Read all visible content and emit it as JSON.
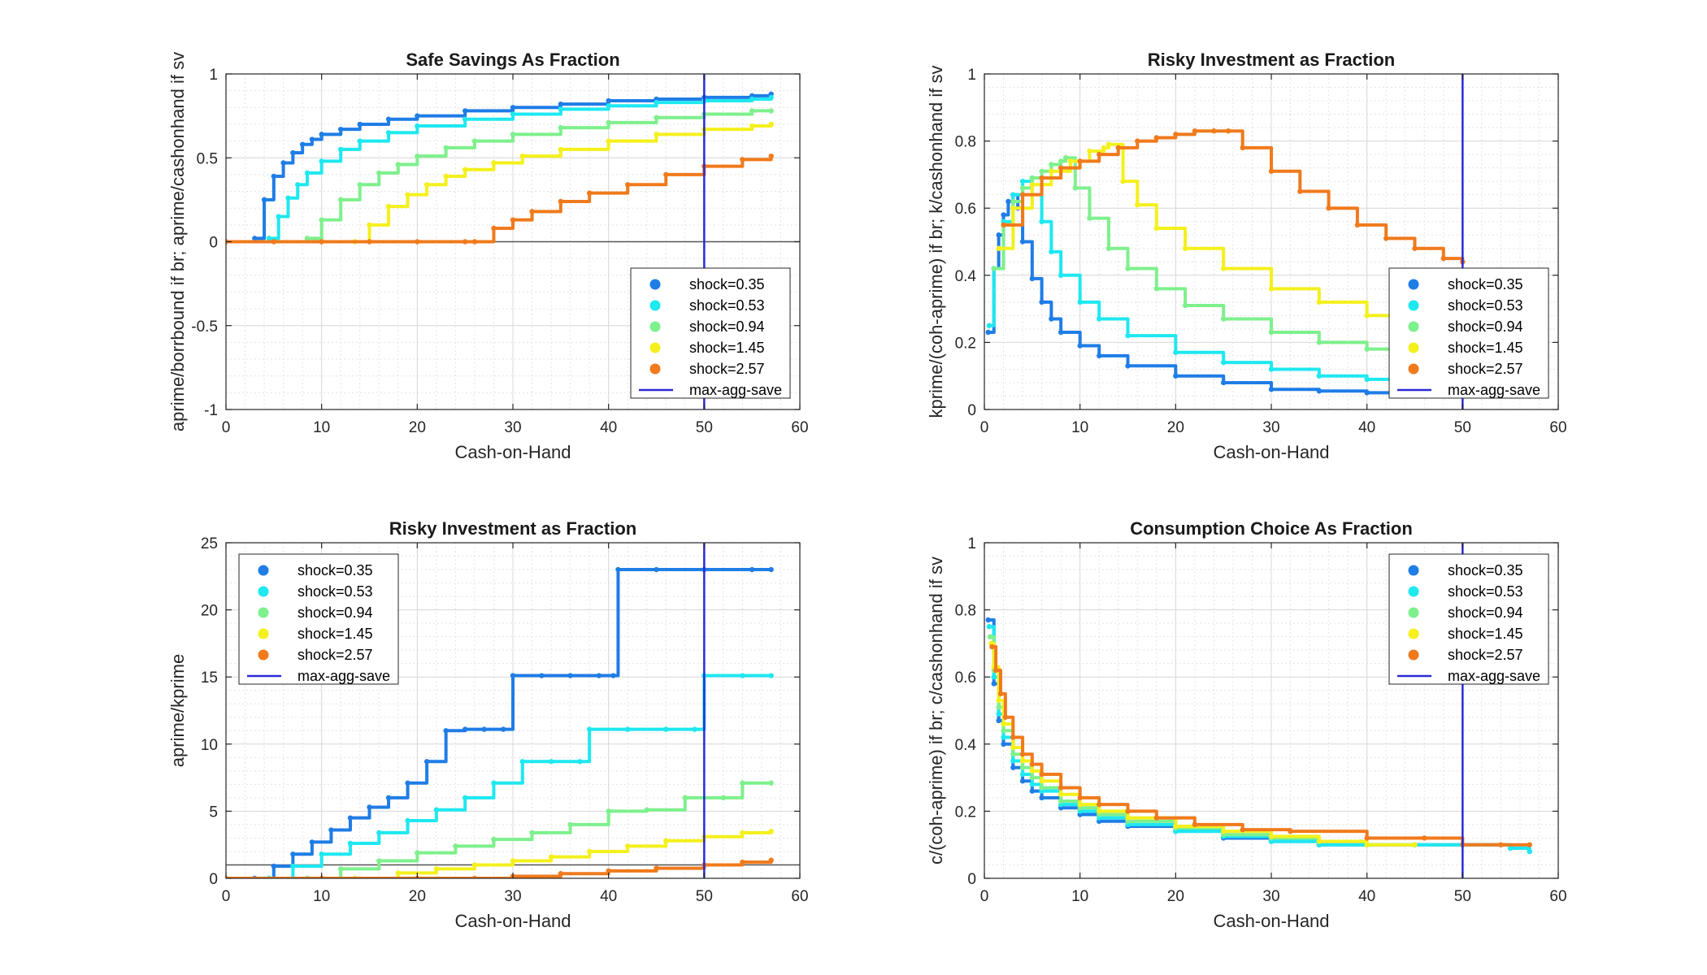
{
  "figure": {
    "background": "#ffffff"
  },
  "colors": {
    "shock_0_35": "#1f7de6",
    "shock_0_53": "#1ee8f0",
    "shock_0_94": "#7ef08c",
    "shock_1_45": "#f4f01c",
    "shock_2_57": "#f07a1c",
    "max_agg_save": "#2a2ad6",
    "zero_line": "#555555"
  },
  "chart_data": [
    {
      "type": "scatter",
      "title": "Safe Savings As Fraction",
      "xlabel": "Cash-on-Hand",
      "ylabel": "aprime/borrbound if br; aprime/cashonhand if sv",
      "xlim": [
        0,
        60
      ],
      "ylim": [
        -1,
        1
      ],
      "xticks": [
        0,
        10,
        20,
        30,
        40,
        50,
        60
      ],
      "yticks": [
        -1,
        -0.5,
        0,
        0.5,
        1
      ],
      "ytick_labels": [
        "-1",
        "-0.5",
        "0",
        "0.5",
        "1"
      ],
      "grid": true,
      "legend_position": "lower-right",
      "hline": 0,
      "vline": {
        "name": "max-agg-save",
        "x": 50
      },
      "series": [
        {
          "name": "shock=0.35",
          "color_key": "shock_0_35",
          "x": [
            3,
            4,
            5,
            6,
            7,
            8,
            9,
            10,
            12,
            14,
            17,
            20,
            25,
            30,
            35,
            40,
            45,
            50,
            55,
            57
          ],
          "y": [
            0.02,
            0.25,
            0.39,
            0.47,
            0.53,
            0.58,
            0.61,
            0.64,
            0.67,
            0.7,
            0.73,
            0.75,
            0.78,
            0.8,
            0.82,
            0.84,
            0.85,
            0.86,
            0.87,
            0.88
          ]
        },
        {
          "name": "shock=0.53",
          "color_key": "shock_0_53",
          "x": [
            4.5,
            5.5,
            6.5,
            7.5,
            8.5,
            10,
            12,
            14,
            17,
            20,
            25,
            30,
            35,
            40,
            45,
            50,
            55,
            57
          ],
          "y": [
            0.02,
            0.15,
            0.26,
            0.34,
            0.41,
            0.48,
            0.55,
            0.6,
            0.65,
            0.69,
            0.73,
            0.76,
            0.79,
            0.81,
            0.83,
            0.84,
            0.85,
            0.86
          ]
        },
        {
          "name": "shock=0.94",
          "color_key": "shock_0_94",
          "x": [
            8.5,
            10,
            12,
            14,
            16,
            18,
            20,
            23,
            26,
            30,
            35,
            40,
            45,
            50,
            55,
            57
          ],
          "y": [
            0.02,
            0.13,
            0.25,
            0.34,
            0.41,
            0.46,
            0.51,
            0.56,
            0.6,
            0.64,
            0.68,
            0.71,
            0.74,
            0.76,
            0.78,
            0.78
          ]
        },
        {
          "name": "shock=1.45",
          "color_key": "shock_1_45",
          "x": [
            13.5,
            15,
            17,
            19,
            21,
            23,
            25,
            28,
            31,
            35,
            40,
            45,
            50,
            55,
            57
          ],
          "y": [
            0.0,
            0.1,
            0.21,
            0.28,
            0.34,
            0.39,
            0.43,
            0.47,
            0.51,
            0.55,
            0.6,
            0.64,
            0.67,
            0.69,
            0.7
          ]
        },
        {
          "name": "shock=2.57",
          "color_key": "shock_2_57",
          "x": [
            0,
            5,
            10,
            15,
            20,
            25,
            26,
            28,
            30,
            32,
            35,
            38,
            42,
            46,
            50,
            54,
            57
          ],
          "y": [
            0,
            0,
            0,
            0,
            0,
            0,
            0.0,
            0.08,
            0.13,
            0.18,
            0.24,
            0.29,
            0.34,
            0.4,
            0.45,
            0.49,
            0.51
          ]
        }
      ]
    },
    {
      "type": "scatter",
      "title": "Risky Investment as Fraction",
      "xlabel": "Cash-on-Hand",
      "ylabel": "kprime/(coh-aprime) if br; k/cashonhand if sv",
      "xlim": [
        0,
        60
      ],
      "ylim": [
        0,
        1
      ],
      "xticks": [
        0,
        10,
        20,
        30,
        40,
        50,
        60
      ],
      "yticks": [
        0,
        0.2,
        0.4,
        0.6,
        0.8,
        1
      ],
      "ytick_labels": [
        "0",
        "0.2",
        "0.4",
        "0.6",
        "0.8",
        "1"
      ],
      "grid": true,
      "legend_position": "lower-right",
      "vline": {
        "name": "max-agg-save",
        "x": 50
      },
      "series": [
        {
          "name": "shock=0.35",
          "color_key": "shock_0_35",
          "x": [
            0.4,
            1,
            1.5,
            2,
            2.5,
            3,
            3.5,
            4,
            5,
            6,
            7,
            8,
            10,
            12,
            15,
            20,
            25,
            30,
            35,
            40,
            45,
            50,
            55,
            57
          ],
          "y": [
            0.23,
            0.42,
            0.52,
            0.58,
            0.62,
            0.64,
            0.6,
            0.5,
            0.39,
            0.32,
            0.27,
            0.23,
            0.19,
            0.16,
            0.13,
            0.1,
            0.08,
            0.06,
            0.055,
            0.05,
            0.045,
            0.04,
            0.04,
            0.04
          ]
        },
        {
          "name": "shock=0.53",
          "color_key": "shock_0_53",
          "x": [
            0.5,
            1,
            2,
            3,
            4,
            5,
            6,
            7,
            8,
            10,
            12,
            15,
            20,
            25,
            30,
            35,
            40,
            45,
            50,
            55,
            57
          ],
          "y": [
            0.25,
            0.42,
            0.56,
            0.64,
            0.68,
            0.69,
            0.56,
            0.47,
            0.4,
            0.32,
            0.27,
            0.22,
            0.17,
            0.14,
            0.12,
            0.1,
            0.09,
            0.08,
            0.07,
            0.065,
            0.06
          ]
        },
        {
          "name": "shock=0.94",
          "color_key": "shock_0_94",
          "x": [
            1,
            2,
            3,
            4,
            5,
            6,
            7,
            8,
            8.5,
            9.5,
            11,
            13,
            15,
            18,
            21,
            25,
            30,
            35,
            40,
            45,
            50,
            55,
            57
          ],
          "y": [
            0.42,
            0.55,
            0.62,
            0.66,
            0.69,
            0.71,
            0.73,
            0.74,
            0.75,
            0.66,
            0.57,
            0.48,
            0.42,
            0.36,
            0.31,
            0.27,
            0.23,
            0.2,
            0.18,
            0.16,
            0.15,
            0.14,
            0.13
          ]
        },
        {
          "name": "shock=1.45",
          "color_key": "shock_1_45",
          "x": [
            1.5,
            3,
            5,
            7,
            9,
            11,
            12.5,
            13,
            14.5,
            16,
            18,
            21,
            25,
            30,
            35,
            40,
            45,
            50,
            55,
            57
          ],
          "y": [
            0.48,
            0.6,
            0.67,
            0.71,
            0.74,
            0.77,
            0.78,
            0.79,
            0.68,
            0.61,
            0.54,
            0.48,
            0.42,
            0.36,
            0.32,
            0.28,
            0.25,
            0.23,
            0.21,
            0.2
          ]
        },
        {
          "name": "shock=2.57",
          "color_key": "shock_2_57",
          "x": [
            2,
            4,
            6,
            8,
            10,
            12,
            14,
            16,
            18,
            20,
            22,
            24,
            25.5,
            27,
            30,
            33,
            36,
            39,
            42,
            45,
            48,
            50
          ],
          "y": [
            0.55,
            0.64,
            0.69,
            0.72,
            0.74,
            0.76,
            0.78,
            0.8,
            0.81,
            0.82,
            0.83,
            0.83,
            0.83,
            0.78,
            0.71,
            0.65,
            0.6,
            0.55,
            0.51,
            0.48,
            0.45,
            0.44
          ]
        }
      ]
    },
    {
      "type": "scatter",
      "title": "Risky Investment as Fraction",
      "xlabel": "Cash-on-Hand",
      "ylabel": "aprime/kprime",
      "xlim": [
        0,
        60
      ],
      "ylim": [
        0,
        25
      ],
      "xticks": [
        0,
        10,
        20,
        30,
        40,
        50,
        60
      ],
      "yticks": [
        0,
        5,
        10,
        15,
        20,
        25
      ],
      "ytick_labels": [
        "0",
        "5",
        "10",
        "15",
        "20",
        "25"
      ],
      "grid": true,
      "legend_position": "upper-left",
      "hline": 1,
      "vline": {
        "name": "max-agg-save",
        "x": 50
      },
      "series": [
        {
          "name": "shock=0.35",
          "color_key": "shock_0_35",
          "x": [
            3,
            5,
            7,
            9,
            11,
            13,
            15,
            17,
            19,
            21,
            23,
            25,
            27,
            29,
            30,
            33,
            36,
            39,
            40.5,
            41,
            45,
            50,
            55,
            57
          ],
          "y": [
            0,
            0.9,
            1.8,
            2.7,
            3.6,
            4.5,
            5.3,
            6.0,
            7.1,
            8.7,
            11.0,
            11.1,
            11.1,
            11.1,
            15.1,
            15.1,
            15.1,
            15.1,
            15.1,
            23,
            23,
            23,
            23,
            23
          ]
        },
        {
          "name": "shock=0.53",
          "color_key": "shock_0_53",
          "x": [
            4.5,
            7,
            10,
            13,
            16,
            19,
            22,
            25,
            28,
            31,
            34,
            37,
            38,
            42,
            46,
            49,
            50,
            54,
            57
          ],
          "y": [
            0,
            0.9,
            1.8,
            2.6,
            3.4,
            4.3,
            5.1,
            6.0,
            7.1,
            8.7,
            8.7,
            8.7,
            11.1,
            11.1,
            11.1,
            11.1,
            15.1,
            15.1,
            15.1
          ]
        },
        {
          "name": "shock=0.94",
          "color_key": "shock_0_94",
          "x": [
            8.5,
            12,
            16,
            20,
            24,
            28,
            32,
            36,
            40,
            44,
            48,
            52,
            54,
            57
          ],
          "y": [
            0,
            0.7,
            1.3,
            1.9,
            2.4,
            2.9,
            3.4,
            4.0,
            5.0,
            5.1,
            6.0,
            6.0,
            7.1,
            7.1
          ]
        },
        {
          "name": "shock=1.45",
          "color_key": "shock_1_45",
          "x": [
            13.5,
            18,
            22,
            26,
            30,
            34,
            38,
            42,
            46,
            50,
            54,
            57
          ],
          "y": [
            0,
            0.4,
            0.7,
            1.0,
            1.3,
            1.6,
            2.0,
            2.4,
            2.8,
            3.1,
            3.4,
            3.5
          ]
        },
        {
          "name": "shock=2.57",
          "color_key": "shock_2_57",
          "x": [
            0,
            10,
            20,
            26,
            30,
            35,
            40,
            45,
            50,
            54,
            57
          ],
          "y": [
            0,
            0,
            0,
            0,
            0.15,
            0.35,
            0.55,
            0.75,
            1.0,
            1.2,
            1.35
          ]
        }
      ]
    },
    {
      "type": "scatter",
      "title": "Consumption Choice As Fraction",
      "xlabel": "Cash-on-Hand",
      "ylabel": "c/(coh-aprime) if br; c/cashonhand if sv",
      "xlim": [
        0,
        60
      ],
      "ylim": [
        0,
        1
      ],
      "xticks": [
        0,
        10,
        20,
        30,
        40,
        50,
        60
      ],
      "yticks": [
        0,
        0.2,
        0.4,
        0.6,
        0.8,
        1
      ],
      "ytick_labels": [
        "0",
        "0.2",
        "0.4",
        "0.6",
        "0.8",
        "1"
      ],
      "grid": true,
      "legend_position": "upper-right",
      "vline": {
        "name": "max-agg-save",
        "x": 50
      },
      "series": [
        {
          "name": "shock=0.35",
          "color_key": "shock_0_35",
          "x": [
            0.4,
            1,
            1.5,
            2,
            3,
            4,
            5,
            6,
            8,
            10,
            12,
            15,
            20,
            25,
            30,
            35,
            40,
            45,
            50,
            55,
            57
          ],
          "y": [
            0.77,
            0.58,
            0.47,
            0.4,
            0.33,
            0.29,
            0.26,
            0.24,
            0.21,
            0.19,
            0.17,
            0.155,
            0.14,
            0.12,
            0.11,
            0.1,
            0.1,
            0.1,
            0.1,
            0.09,
            0.08
          ]
        },
        {
          "name": "shock=0.53",
          "color_key": "shock_0_53",
          "x": [
            0.5,
            1,
            1.5,
            2,
            3,
            4,
            5,
            6,
            8,
            10,
            12,
            15,
            20,
            25,
            30,
            35,
            40,
            45,
            50,
            55,
            57
          ],
          "y": [
            0.75,
            0.6,
            0.49,
            0.42,
            0.35,
            0.31,
            0.28,
            0.26,
            0.22,
            0.2,
            0.18,
            0.16,
            0.14,
            0.125,
            0.11,
            0.1,
            0.1,
            0.1,
            0.1,
            0.09,
            0.08
          ]
        },
        {
          "name": "shock=0.94",
          "color_key": "shock_0_94",
          "x": [
            0.6,
            1,
            1.5,
            2,
            3,
            4,
            5,
            6,
            8,
            10,
            12,
            15,
            20,
            25,
            30,
            35,
            40,
            45
          ],
          "y": [
            0.72,
            0.62,
            0.51,
            0.44,
            0.37,
            0.33,
            0.3,
            0.27,
            0.23,
            0.21,
            0.19,
            0.17,
            0.15,
            0.13,
            0.12,
            0.11,
            0.1,
            0.1
          ]
        },
        {
          "name": "shock=1.45",
          "color_key": "shock_1_45",
          "x": [
            0.7,
            1,
            1.5,
            2,
            3,
            4,
            5,
            6,
            8,
            10,
            12,
            15,
            20,
            25,
            30,
            35,
            40,
            45
          ],
          "y": [
            0.7,
            0.63,
            0.53,
            0.46,
            0.39,
            0.35,
            0.32,
            0.29,
            0.25,
            0.22,
            0.2,
            0.18,
            0.155,
            0.14,
            0.125,
            0.11,
            0.1,
            0.1
          ]
        },
        {
          "name": "shock=2.57",
          "color_key": "shock_2_57",
          "x": [
            0.8,
            1.2,
            1.7,
            2.2,
            3,
            4,
            5,
            6,
            8,
            10,
            12,
            15,
            18,
            22,
            27,
            32,
            40,
            46,
            50,
            54,
            57
          ],
          "y": [
            0.69,
            0.62,
            0.55,
            0.48,
            0.42,
            0.37,
            0.34,
            0.31,
            0.27,
            0.24,
            0.22,
            0.2,
            0.18,
            0.16,
            0.145,
            0.14,
            0.12,
            0.12,
            0.1,
            0.1,
            0.1
          ]
        }
      ]
    }
  ]
}
